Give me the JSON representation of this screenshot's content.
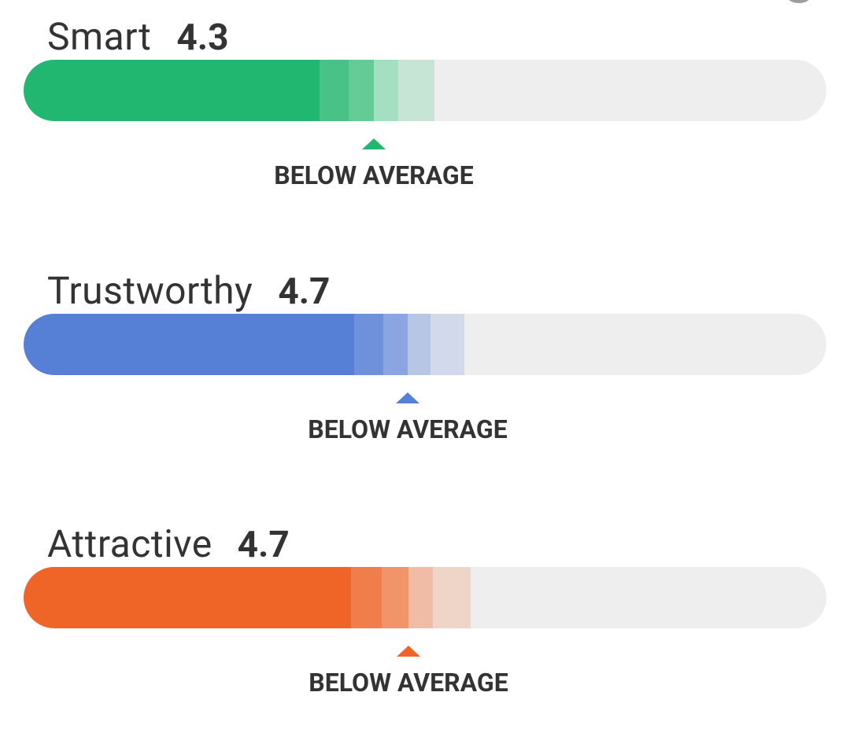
{
  "metrics": [
    {
      "name": "Smart",
      "score": "4.3",
      "rating": "BELOW AVERAGE",
      "score_fraction": 0.43,
      "color": "#21b770",
      "band_colors": [
        "#48c286",
        "#64cb97",
        "#a5dfc2",
        "#c6e5d5"
      ]
    },
    {
      "name": "Trustworthy",
      "score": "4.7",
      "rating": "BELOW AVERAGE",
      "score_fraction": 0.47,
      "color": "#5580d6",
      "band_colors": [
        "#6f91db",
        "#8aa5df",
        "#b8c6e6",
        "#d2d9ea"
      ]
    },
    {
      "name": "Attractive",
      "score": "4.7",
      "rating": "BELOW AVERAGE",
      "score_fraction": 0.47,
      "color": "#ef6527",
      "band_colors": [
        "#f07e4b",
        "#f19469",
        "#f0bca6",
        "#efd4c8"
      ]
    }
  ]
}
